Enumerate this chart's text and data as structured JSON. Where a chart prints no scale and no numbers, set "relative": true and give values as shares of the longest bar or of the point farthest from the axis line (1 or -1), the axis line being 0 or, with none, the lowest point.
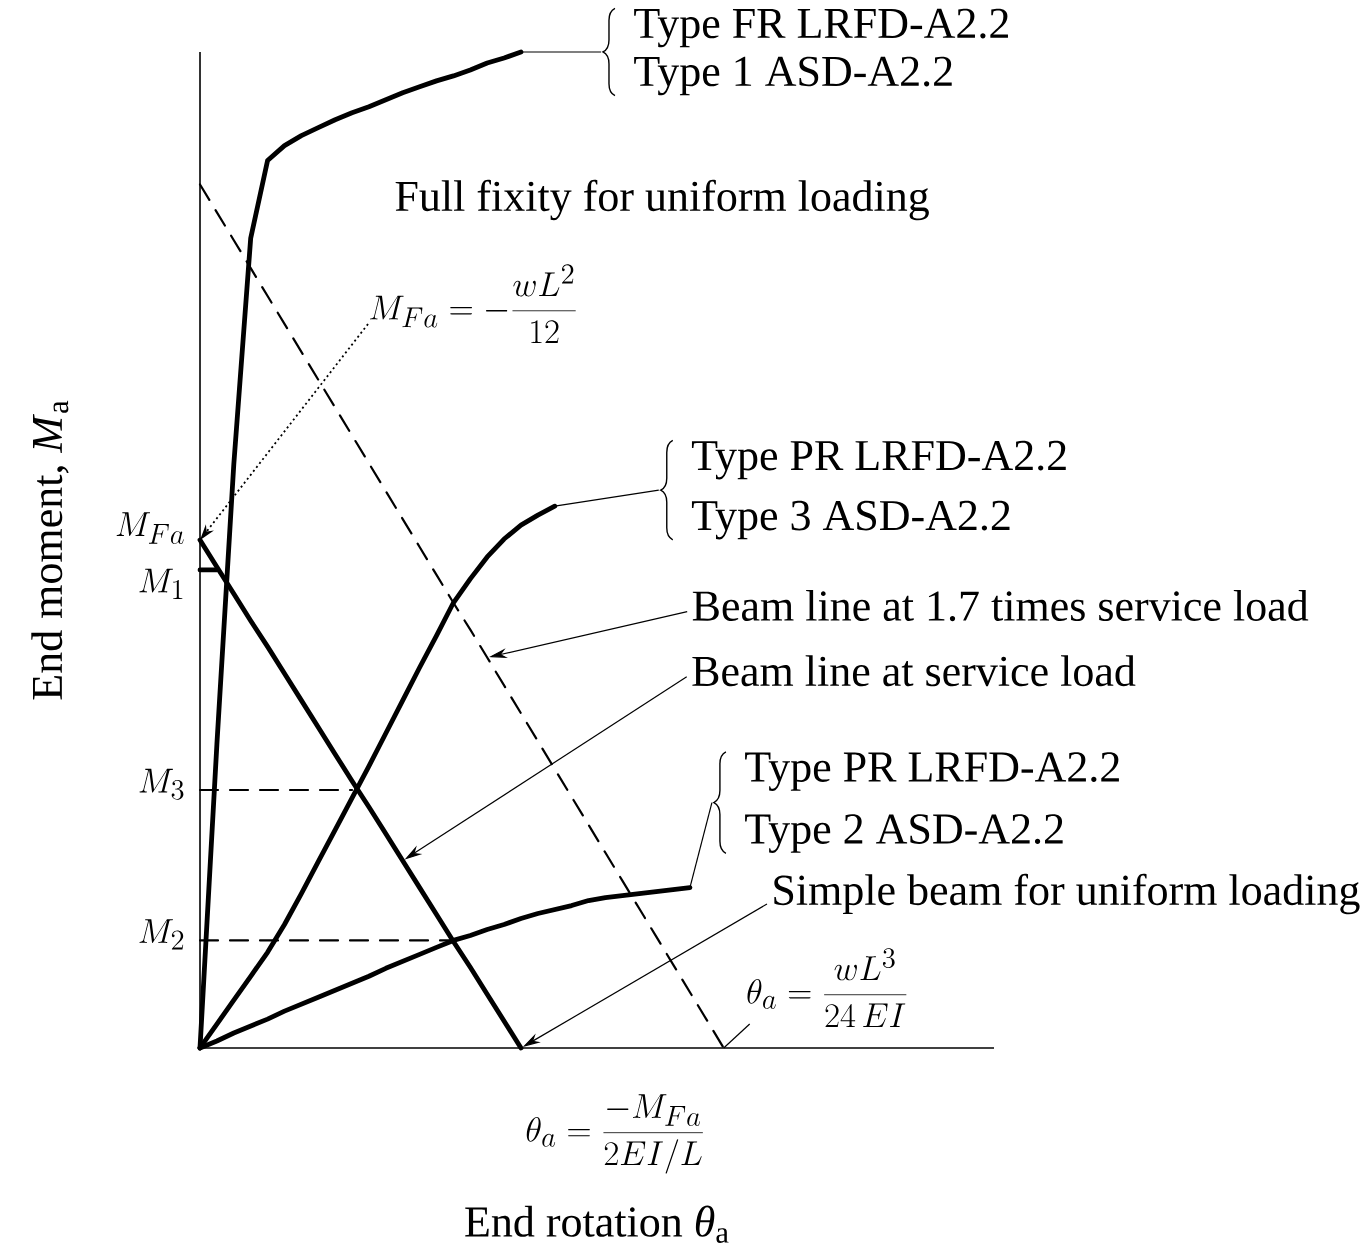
{
  "chart_data": {
    "type": "line",
    "relative": true,
    "xlabel": "End rotation *θ*$_{a}$",
    "ylabel": "End moment, *M*$_{a}$",
    "categories": [
      null,
      null,
      null,
      null,
      null,
      null,
      null,
      null,
      null,
      null,
      null,
      null,
      null,
      null,
      null,
      null,
      null,
      null,
      null,
      null,
      null,
      null,
      null,
      null,
      null,
      null,
      null,
      null,
      null,
      null,
      null,
      null,
      null,
      null,
      null,
      null,
      null,
      null,
      null,
      null,
      null,
      null,
      null,
      null,
      null,
      null,
      null,
      null
    ],
    "series": [
      {
        "color": "#000000",
        "values": [
          0,
          0.305,
          0.586,
          0.813,
          0.891,
          0.906,
          0.916,
          0.924,
          0.932,
          0.939,
          0.945,
          0.952,
          0.959,
          0.965,
          0.971,
          0.976,
          0.982,
          0.989,
          0.994,
          1,
          null,
          null,
          null,
          null,
          null,
          null,
          null,
          null,
          null,
          null,
          null,
          null,
          null,
          null,
          null,
          null,
          null,
          null,
          null,
          null,
          null,
          null,
          null,
          null,
          null,
          null,
          null,
          null
        ]
      },
      {
        "color": "#000000",
        "values": [
          0,
          0.024,
          0.048,
          0.072,
          0.096,
          0.124,
          0.155,
          0.187,
          0.219,
          0.251,
          0.283,
          0.316,
          0.349,
          0.382,
          0.414,
          0.447,
          0.471,
          0.493,
          0.511,
          0.525,
          0.535,
          0.544,
          null,
          null,
          null,
          null,
          null,
          null,
          null,
          null,
          null,
          null,
          null,
          null,
          null,
          null,
          null,
          null,
          null,
          null,
          null,
          null,
          null,
          null,
          null,
          null,
          null,
          null
        ]
      },
      {
        "color": "#000000",
        "values": [
          0,
          0.007,
          0.015,
          0.022,
          0.029,
          0.037,
          0.044,
          0.051,
          0.058,
          0.065,
          0.072,
          0.08,
          0.087,
          0.094,
          0.101,
          0.108,
          0.113,
          0.119,
          0.124,
          0.13,
          0.135,
          0.139,
          0.143,
          0.148,
          0.151,
          0.153,
          0.155,
          0.157,
          0.159,
          0.161,
          null,
          null,
          null,
          null,
          null,
          null,
          null,
          null,
          null,
          null,
          null,
          null,
          null,
          null,
          null,
          null,
          null,
          null
        ]
      },
      {
        "color": "#000000",
        "values": [
          0.51,
          0.483,
          0.456,
          0.429,
          0.403,
          0.376,
          0.349,
          0.322,
          0.295,
          0.268,
          0.242,
          0.215,
          0.188,
          0.161,
          0.134,
          0.107,
          0.081,
          0.054,
          0.027,
          0,
          null,
          null,
          null,
          null,
          null,
          null,
          null,
          null,
          null,
          null,
          null,
          null,
          null,
          null,
          null,
          null,
          null,
          null,
          null,
          null,
          null,
          null,
          null,
          null,
          null,
          null,
          null,
          null
        ]
      },
      {
        "color": "#000000",
        "line_style": "dashed",
        "values": [
          0.867,
          0.839,
          0.811,
          0.783,
          0.755,
          0.727,
          0.699,
          0.671,
          0.643,
          0.615,
          0.587,
          0.559,
          0.531,
          0.503,
          0.475,
          0.447,
          0.42,
          0.392,
          0.364,
          0.336,
          0.308,
          0.28,
          0.252,
          0.224,
          0.196,
          0.168,
          0.14,
          0.112,
          0.084,
          0.056,
          0.028,
          0,
          null,
          null,
          null,
          null,
          null,
          null,
          null,
          null,
          null,
          null,
          null,
          null,
          null,
          null,
          null,
          null
        ]
      },
      {
        "color": "#000000",
        "line_style": "dashed",
        "values": [
          0.259,
          0.259,
          0.259,
          0.259,
          0.259,
          0.259,
          0.259,
          0.259,
          0.259,
          0.259,
          null,
          null,
          null,
          null,
          null,
          null,
          null,
          null,
          null,
          null,
          null,
          null,
          null,
          null,
          null,
          null,
          null,
          null,
          null,
          null,
          null,
          null,
          null,
          null,
          null,
          null,
          null,
          null,
          null,
          null,
          null,
          null,
          null,
          null,
          null,
          null,
          null,
          null
        ]
      },
      {
        "color": "#000000",
        "line_style": "dashed",
        "values": [
          0.108,
          0.108,
          0.108,
          0.108,
          0.108,
          0.108,
          0.108,
          0.108,
          0.108,
          0.108,
          0.108,
          0.108,
          0.108,
          0.108,
          0.108,
          0.108,
          null,
          null,
          null,
          null,
          null,
          null,
          null,
          null,
          null,
          null,
          null,
          null,
          null,
          null,
          null,
          null,
          null,
          null,
          null,
          null,
          null,
          null,
          null,
          null,
          null,
          null,
          null,
          null,
          null,
          null,
          null,
          null
        ]
      },
      {
        "color": "#000000",
        "values": [
          0.48,
          0.48,
          null,
          null,
          null,
          null,
          null,
          null,
          null,
          null,
          null,
          null,
          null,
          null,
          null,
          null,
          null,
          null,
          null,
          null,
          null,
          null,
          null,
          null,
          null,
          null,
          null,
          null,
          null,
          null,
          null,
          null,
          null,
          null,
          null,
          null,
          null,
          null,
          null,
          null,
          null,
          null,
          null,
          null,
          null,
          null,
          null,
          null
        ]
      }
    ],
    "annotations": [
      "Type FR  LRFD-A2.2",
      "Type 1    ASD-A2.2",
      "Full fixity for uniform loading",
      "M_{Fa} = -\\frac{wL^2}{12}",
      "M_{Fa}",
      "M_1",
      "Type PR  LRFD-A2.2",
      "Type 3    ASD-A2.2",
      "Beam line at 1.7 times service load",
      "Beam line at service load",
      "M_3",
      "Type PR  LRFD-A2.2",
      "Type 2    ASD-A2.2",
      "M_2",
      "Simple beam for uniform loading",
      "\\theta_a = \\frac{wL^3}{24\\,EI}",
      "\\theta_a = \\frac{-M_{Fa}}{2EI/L}"
    ]
  }
}
